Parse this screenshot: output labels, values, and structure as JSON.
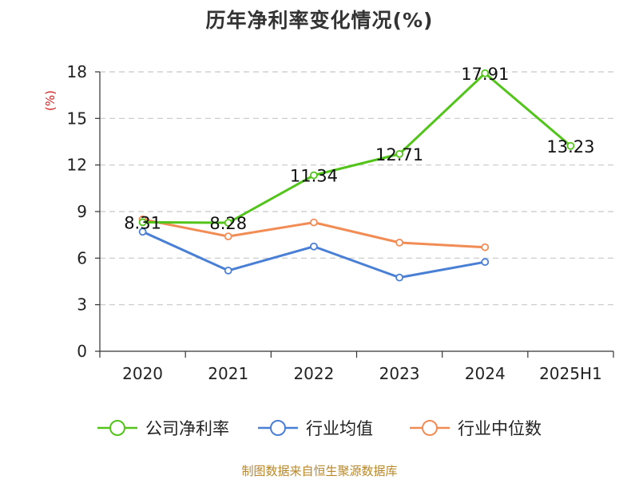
{
  "chart_data": {
    "type": "line",
    "title": "历年净利率变化情况(%)",
    "ylabel": "(%)",
    "xlabel": "",
    "categories": [
      "2020",
      "2021",
      "2022",
      "2023",
      "2024",
      "2025H1"
    ],
    "ylim": [
      0,
      18
    ],
    "yticks": [
      0,
      3,
      6,
      9,
      12,
      15,
      18
    ],
    "grid": true,
    "legend_position": "bottom",
    "series": [
      {
        "name": "公司净利率",
        "color": "#52c41a",
        "values": [
          8.31,
          8.28,
          11.34,
          12.71,
          17.91,
          13.23
        ],
        "labels": [
          "8.31",
          "8.28",
          "11.34",
          "12.71",
          "17.91",
          "13.23"
        ]
      },
      {
        "name": "行业均值",
        "color": "#4a7fd6",
        "values": [
          7.7,
          5.2,
          6.75,
          4.75,
          5.75,
          null
        ]
      },
      {
        "name": "行业中位数",
        "color": "#f28c55",
        "values": [
          8.5,
          7.4,
          8.3,
          7.0,
          6.7,
          null
        ]
      }
    ]
  },
  "footer": {
    "source": "制图数据来自恒生聚源数据库"
  }
}
